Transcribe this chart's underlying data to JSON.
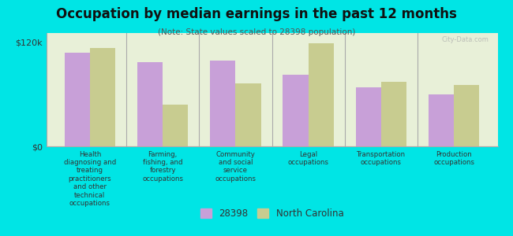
{
  "title": "Occupation by median earnings in the past 12 months",
  "subtitle": "(Note: State values scaled to 28398 population)",
  "background_color": "#00e5e5",
  "plot_bg_color": "#e8f0d8",
  "categories": [
    "Health\ndiagnosing and\ntreating\npractitioners\nand other\ntechnical\noccupations",
    "Farming,\nfishing, and\nforestry\noccupations",
    "Community\nand social\nservice\noccupations",
    "Legal\noccupations",
    "Transportation\noccupations",
    "Production\noccupations"
  ],
  "values_28398": [
    107000,
    97000,
    98000,
    82000,
    68000,
    60000
  ],
  "values_nc": [
    113000,
    48000,
    72000,
    118000,
    74000,
    70000
  ],
  "color_28398": "#c8a0d8",
  "color_nc": "#c8cc90",
  "ylabel_tick": "$120k",
  "y_max": 130000,
  "y_tick_val": 120000,
  "legend_28398": "28398",
  "legend_nc": "North Carolina",
  "grid_color": "#cccccc",
  "watermark": "City-Data.com"
}
